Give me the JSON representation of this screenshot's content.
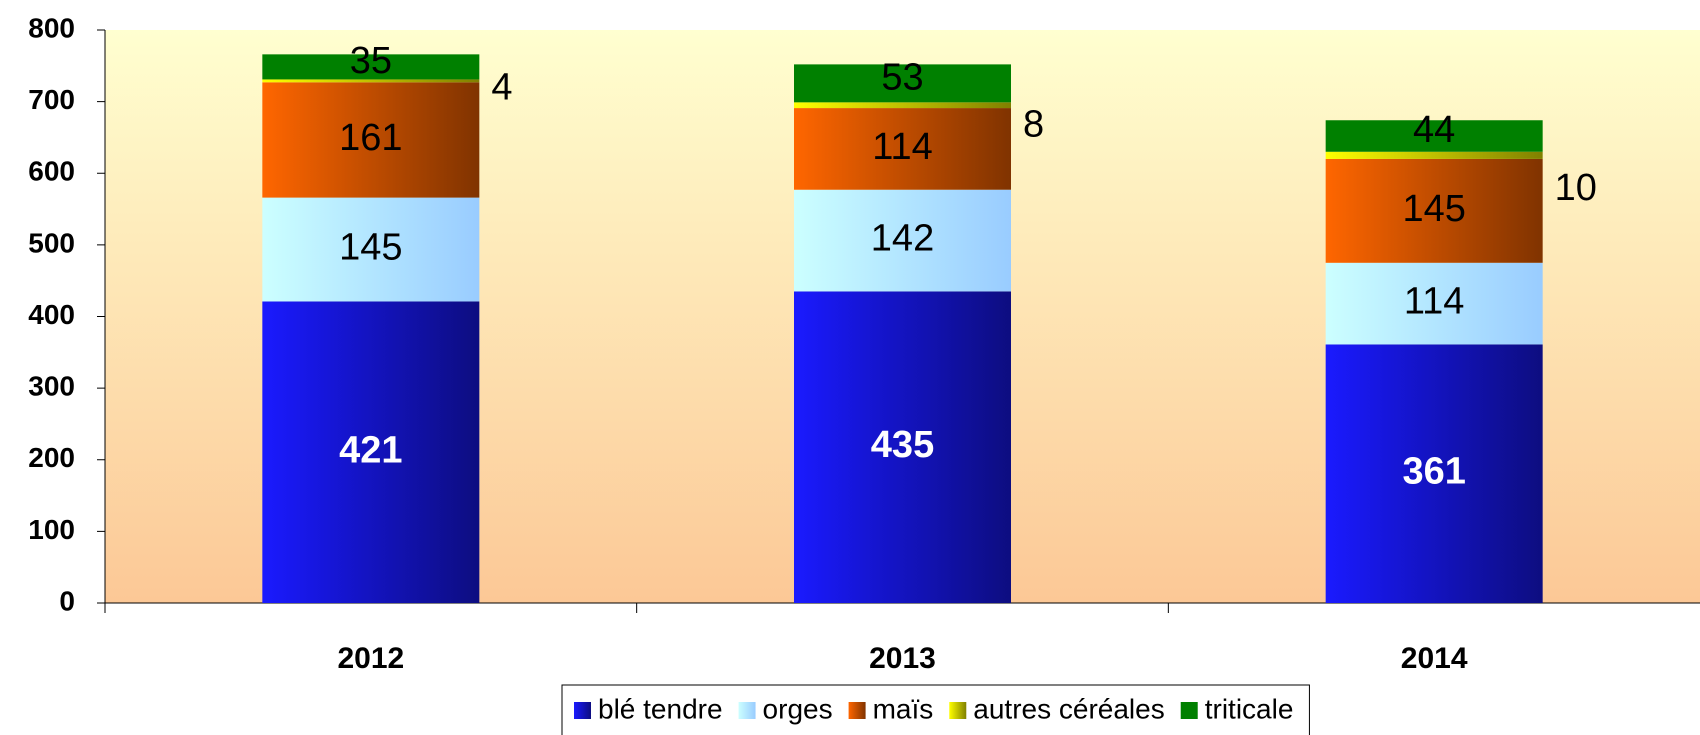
{
  "chart_data": {
    "type": "stacked_bar",
    "categories": [
      "2012",
      "2013",
      "2014"
    ],
    "series": [
      {
        "name": "blé tendre",
        "color": "#1a1aff",
        "values": [
          421,
          435,
          361
        ]
      },
      {
        "name": "orges",
        "color": "#ccffff",
        "values": [
          145,
          142,
          114
        ]
      },
      {
        "name": "maïs",
        "color": "#ff6600",
        "values": [
          161,
          114,
          145
        ]
      },
      {
        "name": "autres céréales",
        "color": "#ffff00",
        "values": [
          4,
          8,
          10
        ]
      },
      {
        "name": "triticale",
        "color": "#008000",
        "values": [
          35,
          53,
          44
        ]
      }
    ],
    "ylim": [
      0,
      800
    ],
    "yticks": [
      0,
      100,
      200,
      300,
      400,
      500,
      600,
      700,
      800
    ],
    "legend": "bottom"
  }
}
